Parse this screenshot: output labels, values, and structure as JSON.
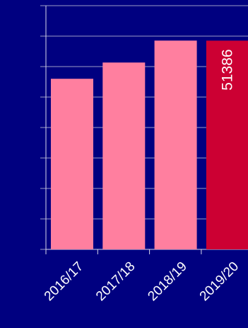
{
  "chart_data": {
    "type": "bar",
    "categories": [
      "2016/17",
      "2017/18",
      "2018/19",
      "2019/20"
    ],
    "values": [
      42000,
      46000,
      51400,
      51386
    ],
    "data_labels": [
      "",
      "",
      "",
      "51386"
    ],
    "highlight_index": 3,
    "title": "",
    "xlabel": "",
    "ylabel": "",
    "ylim": [
      0,
      60000
    ],
    "y_grid_step": 7500,
    "grid": true,
    "legend": "none"
  },
  "colors": {
    "background": "#000080",
    "bar": "#ff7f9f",
    "bar_highlight": "#cc0033",
    "grid": "#9c9cc6",
    "axis": "#d8d8ea",
    "text": "#ffffff"
  }
}
